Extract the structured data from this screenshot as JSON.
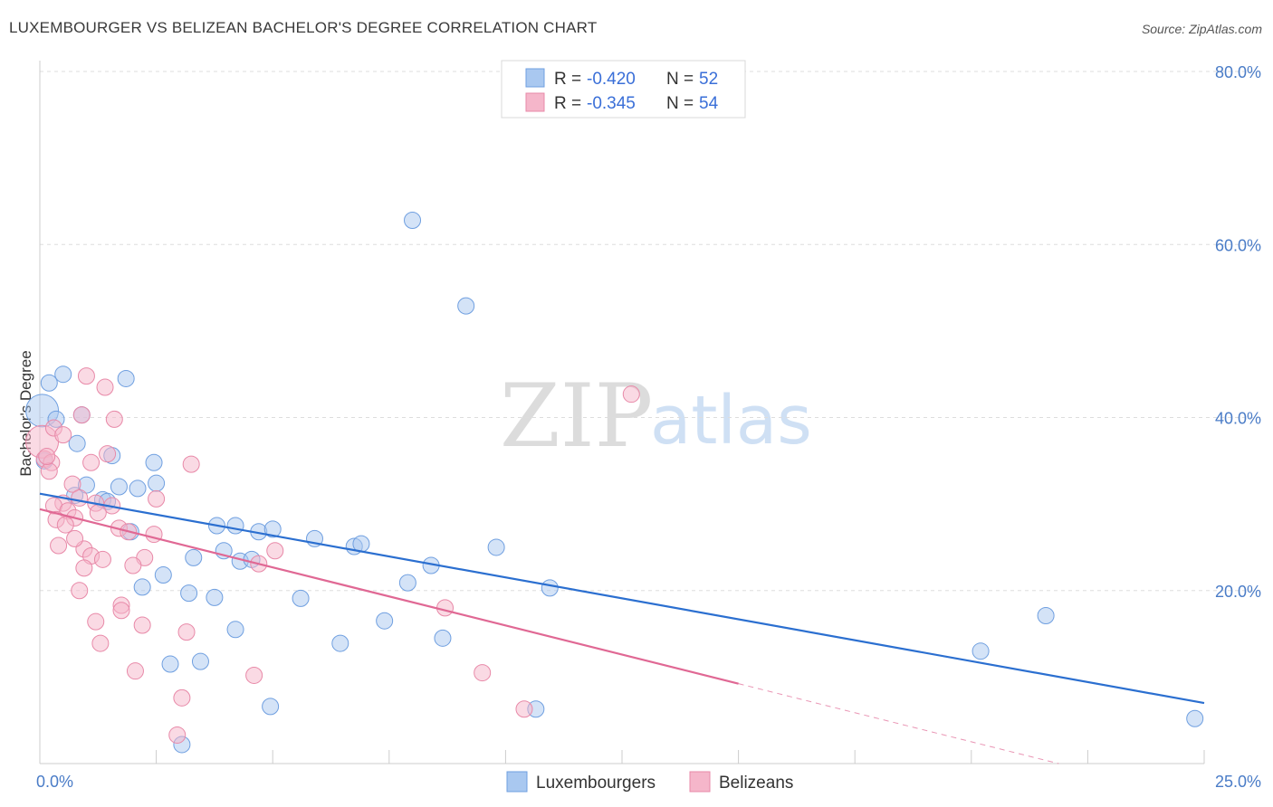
{
  "chart_data": {
    "type": "scatter",
    "title": "LUXEMBOURGER VS BELIZEAN BACHELOR'S DEGREE CORRELATION CHART",
    "source": "Source: ZipAtlas.com",
    "ylabel": "Bachelor's Degree",
    "xlim": [
      0,
      25
    ],
    "ylim": [
      0,
      80
    ],
    "x_tick_labels": [
      "0.0%",
      "25.0%"
    ],
    "y_ticks": [
      20,
      40,
      60,
      80
    ],
    "y_tick_labels": [
      "20.0%",
      "40.0%",
      "60.0%",
      "80.0%"
    ],
    "watermark": {
      "part1": "ZIP",
      "part2": "atlas"
    },
    "legend": {
      "rows": [
        {
          "r_label": "R =",
          "r_value": "-0.420",
          "n_label": "N =",
          "n_value": "52"
        },
        {
          "r_label": "R =",
          "r_value": "-0.345",
          "n_label": "N =",
          "n_value": "54"
        }
      ]
    },
    "series": [
      {
        "name": "Luxembourgers",
        "color": "#a9c8f0",
        "stroke": "#6f9fe0",
        "line_color": "#2b6fd0",
        "trend": {
          "x0": 0,
          "y0": 31.2,
          "x1": 25,
          "y1": 7.0,
          "solid_to": 25
        },
        "points": [
          [
            0.05,
            40.8
          ],
          [
            0.2,
            44.0
          ],
          [
            0.5,
            45.0
          ],
          [
            0.35,
            39.8
          ],
          [
            0.9,
            40.3
          ],
          [
            0.8,
            37.0
          ],
          [
            1.85,
            44.5
          ],
          [
            1.55,
            35.6
          ],
          [
            2.45,
            34.8
          ],
          [
            1.0,
            32.2
          ],
          [
            0.75,
            31.0
          ],
          [
            1.7,
            32.0
          ],
          [
            2.1,
            31.8
          ],
          [
            2.5,
            32.4
          ],
          [
            1.35,
            30.5
          ],
          [
            1.45,
            30.3
          ],
          [
            3.8,
            27.5
          ],
          [
            4.2,
            27.5
          ],
          [
            4.7,
            26.8
          ],
          [
            5.0,
            27.1
          ],
          [
            5.9,
            26.0
          ],
          [
            6.75,
            25.1
          ],
          [
            6.9,
            25.4
          ],
          [
            8.4,
            22.9
          ],
          [
            9.8,
            25.0
          ],
          [
            10.95,
            20.3
          ],
          [
            3.3,
            23.8
          ],
          [
            4.3,
            23.4
          ],
          [
            4.55,
            23.6
          ],
          [
            3.95,
            24.6
          ],
          [
            2.65,
            21.8
          ],
          [
            3.2,
            19.7
          ],
          [
            3.75,
            19.2
          ],
          [
            5.6,
            19.1
          ],
          [
            7.9,
            20.9
          ],
          [
            2.2,
            20.4
          ],
          [
            1.95,
            26.8
          ],
          [
            7.4,
            16.5
          ],
          [
            4.2,
            15.5
          ],
          [
            6.45,
            13.9
          ],
          [
            8.65,
            14.5
          ],
          [
            2.8,
            11.5
          ],
          [
            3.45,
            11.8
          ],
          [
            4.95,
            6.6
          ],
          [
            10.65,
            6.3
          ],
          [
            3.05,
            2.2
          ],
          [
            8.0,
            62.8
          ],
          [
            9.15,
            52.9
          ],
          [
            21.6,
            17.1
          ],
          [
            20.2,
            13.0
          ],
          [
            24.8,
            5.2
          ],
          [
            0.1,
            35.0
          ]
        ]
      },
      {
        "name": "Belizeans",
        "color": "#f5b6ca",
        "stroke": "#e889a8",
        "line_color": "#e06894",
        "trend": {
          "x0": 0,
          "y0": 29.4,
          "x1": 25,
          "y1": -4.2,
          "solid_to": 15.0
        },
        "points": [
          [
            0.05,
            37.2
          ],
          [
            0.1,
            35.2
          ],
          [
            0.25,
            34.8
          ],
          [
            0.2,
            33.8
          ],
          [
            0.3,
            38.8
          ],
          [
            0.5,
            38.0
          ],
          [
            0.9,
            40.3
          ],
          [
            1.4,
            43.5
          ],
          [
            1.0,
            44.8
          ],
          [
            1.6,
            39.8
          ],
          [
            1.45,
            35.8
          ],
          [
            1.1,
            34.8
          ],
          [
            0.7,
            32.3
          ],
          [
            0.5,
            30.1
          ],
          [
            0.3,
            29.8
          ],
          [
            0.6,
            29.2
          ],
          [
            0.85,
            30.7
          ],
          [
            1.2,
            30.1
          ],
          [
            1.55,
            29.8
          ],
          [
            1.25,
            29.0
          ],
          [
            0.75,
            28.4
          ],
          [
            0.35,
            28.2
          ],
          [
            0.55,
            27.6
          ],
          [
            1.7,
            27.2
          ],
          [
            1.9,
            26.8
          ],
          [
            2.45,
            26.5
          ],
          [
            0.4,
            25.2
          ],
          [
            0.95,
            24.8
          ],
          [
            0.75,
            26.0
          ],
          [
            1.1,
            24.0
          ],
          [
            1.35,
            23.6
          ],
          [
            2.25,
            23.8
          ],
          [
            2.0,
            22.9
          ],
          [
            0.95,
            22.6
          ],
          [
            4.7,
            23.1
          ],
          [
            5.05,
            24.6
          ],
          [
            2.5,
            30.6
          ],
          [
            3.25,
            34.6
          ],
          [
            0.85,
            20.0
          ],
          [
            1.75,
            18.3
          ],
          [
            1.75,
            17.7
          ],
          [
            1.2,
            16.4
          ],
          [
            2.2,
            16.0
          ],
          [
            3.15,
            15.2
          ],
          [
            1.3,
            13.9
          ],
          [
            2.05,
            10.7
          ],
          [
            4.6,
            10.2
          ],
          [
            3.05,
            7.6
          ],
          [
            2.95,
            3.3
          ],
          [
            8.7,
            18.0
          ],
          [
            9.5,
            10.5
          ],
          [
            10.4,
            6.3
          ],
          [
            12.7,
            42.7
          ],
          [
            0.15,
            35.5
          ]
        ]
      }
    ]
  }
}
